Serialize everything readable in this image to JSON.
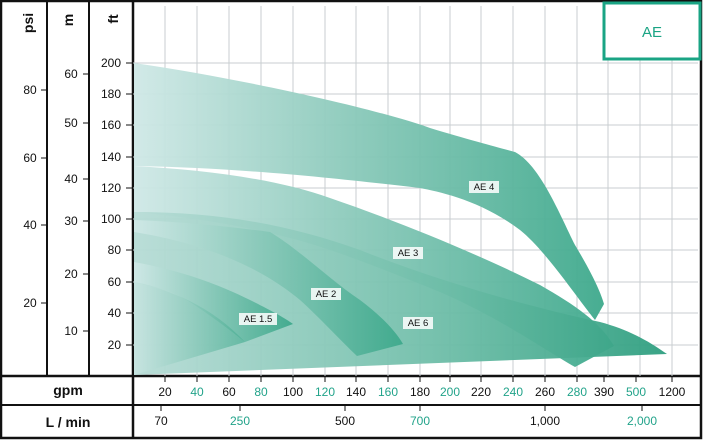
{
  "colors": {
    "border": "#111111",
    "accent": "#2a9d86",
    "tag_border": "#1aa484",
    "tick_alt": "#22a38a",
    "band_light": "#cfe8e6",
    "band_mid": "#7fc6b4",
    "band_dark": "#3da88a"
  },
  "chart_data": {
    "type": "area",
    "tag": "AE",
    "axes_left": [
      {
        "unit": "psi",
        "ticks": [
          "80",
          "60",
          "40",
          "20"
        ]
      },
      {
        "unit": "m",
        "ticks": [
          "60",
          "50",
          "40",
          "30",
          "20",
          "10"
        ]
      },
      {
        "unit": "ft",
        "ticks": [
          "200",
          "180",
          "160",
          "140",
          "120",
          "100",
          "80",
          "60",
          "40",
          "20"
        ],
        "range": [
          10,
          210
        ]
      }
    ],
    "axes_bottom": [
      {
        "unit": "gpm",
        "ticks": [
          "20",
          "40",
          "60",
          "80",
          "100",
          "120",
          "140",
          "160",
          "180",
          "200",
          "220",
          "240",
          "260",
          "280",
          "390",
          "500",
          "1200"
        ]
      },
      {
        "unit": "L / min",
        "ticks": [
          "70",
          "250",
          "500",
          "700",
          "1,000",
          "2,000"
        ]
      }
    ],
    "series": [
      {
        "name": "AE 4",
        "upper": [
          [
            0,
            200
          ],
          [
            100,
            180
          ],
          [
            200,
            155
          ],
          [
            240,
            140
          ],
          [
            280,
            90
          ],
          [
            300,
            40
          ]
        ],
        "lower": [
          [
            0,
            135
          ],
          [
            100,
            125
          ],
          [
            180,
            110
          ],
          [
            240,
            95
          ],
          [
            290,
            30
          ]
        ]
      },
      {
        "name": "AE 3",
        "upper": [
          [
            0,
            133
          ],
          [
            100,
            120
          ],
          [
            160,
            98
          ],
          [
            220,
            70
          ],
          [
            280,
            40
          ],
          [
            310,
            20
          ]
        ],
        "lower": [
          [
            0,
            105
          ],
          [
            80,
            95
          ],
          [
            140,
            75
          ],
          [
            200,
            50
          ],
          [
            290,
            15
          ]
        ]
      },
      {
        "name": "AE 6",
        "upper": [
          [
            0,
            107
          ],
          [
            80,
            95
          ],
          [
            140,
            70
          ],
          [
            220,
            40
          ],
          [
            340,
            15
          ]
        ],
        "lower": [
          [
            0,
            98
          ],
          [
            80,
            85
          ],
          [
            140,
            55
          ],
          [
            180,
            30
          ],
          [
            340,
            10
          ]
        ]
      },
      {
        "name": "AE 2",
        "upper": [
          [
            0,
            98
          ],
          [
            80,
            85
          ],
          [
            140,
            55
          ],
          [
            180,
            25
          ]
        ],
        "lower": [
          [
            0,
            93
          ],
          [
            70,
            75
          ],
          [
            110,
            40
          ],
          [
            150,
            15
          ]
        ]
      },
      {
        "name": "AE 1.5",
        "upper": [
          [
            0,
            73
          ],
          [
            50,
            60
          ],
          [
            100,
            35
          ]
        ],
        "lower": [
          [
            0,
            15
          ],
          [
            70,
            25
          ]
        ]
      }
    ]
  }
}
